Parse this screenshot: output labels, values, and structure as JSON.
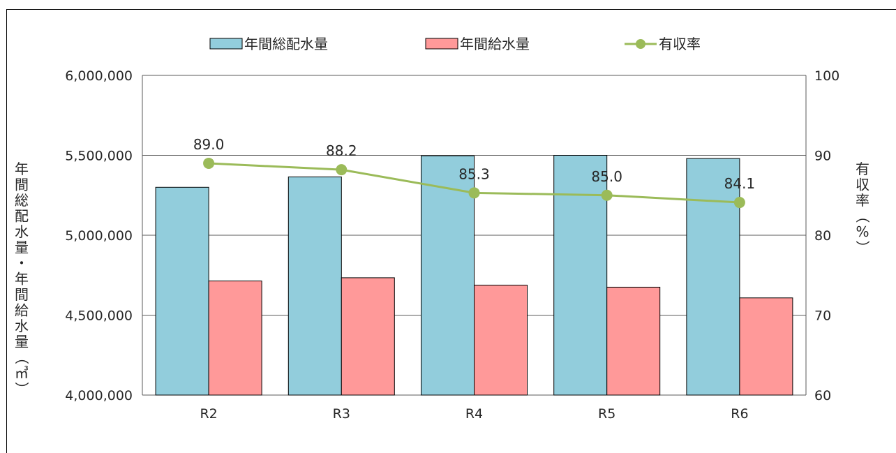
{
  "chart_data": {
    "type": "bar",
    "categories": [
      "R2",
      "R3",
      "R4",
      "R5",
      "R6"
    ],
    "series": [
      {
        "name": "年間総配水量",
        "type": "bar",
        "axis": "left",
        "color": "#92CDDC",
        "values": [
          5300000,
          5365000,
          5497000,
          5500000,
          5480000
        ]
      },
      {
        "name": "年間給水量",
        "type": "bar",
        "axis": "left",
        "color": "#FF9999",
        "values": [
          4714000,
          4734000,
          4688000,
          4675000,
          4608000
        ]
      },
      {
        "name": "有収率",
        "type": "line",
        "axis": "right",
        "color": "#9BBB59",
        "values": [
          89.0,
          88.2,
          85.3,
          85.0,
          84.1
        ],
        "labels": [
          "89.0",
          "88.2",
          "85.3",
          "85.0",
          "84.1"
        ]
      }
    ],
    "y_left": {
      "label": "年間総配水量・年間給水量（㎥）",
      "ylim": [
        4000000,
        6000000
      ],
      "ticks": [
        4000000,
        4500000,
        5000000,
        5500000,
        6000000
      ],
      "tick_labels": [
        "4,000,000",
        "4,500,000",
        "5,000,000",
        "5,500,000",
        "6,000,000"
      ]
    },
    "y_right": {
      "label": "有収率（%）",
      "ylim": [
        60,
        100
      ],
      "ticks": [
        60,
        70,
        80,
        90,
        100
      ],
      "tick_labels": [
        "60",
        "70",
        "80",
        "90",
        "100"
      ]
    },
    "grid": true,
    "legend_position": "top"
  }
}
